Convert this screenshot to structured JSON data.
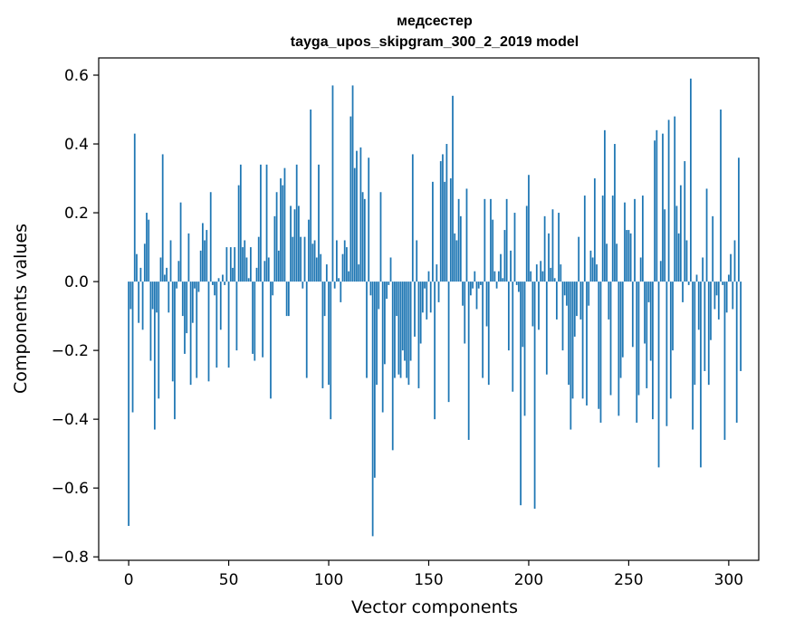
{
  "chart_data": {
    "type": "bar",
    "title": "медсестер",
    "subtitle": "tayga_upos_skipgram_300_2_2019 model",
    "xlabel": "Vector components",
    "ylabel": "Components values",
    "xlim": [
      -15,
      315
    ],
    "ylim": [
      -0.81,
      0.65
    ],
    "xticks": [
      0,
      50,
      100,
      150,
      200,
      250,
      300
    ],
    "yticks": [
      -0.8,
      -0.6,
      -0.4,
      -0.2,
      0.0,
      0.2,
      0.4,
      0.6
    ],
    "xtick_labels": [
      "0",
      "50",
      "100",
      "150",
      "200",
      "250",
      "300"
    ],
    "ytick_labels": [
      "−0.8",
      "−0.6",
      "−0.4",
      "−0.2",
      "0.0",
      "0.2",
      "0.4",
      "0.6"
    ],
    "values": [
      -0.71,
      -0.08,
      -0.38,
      0.43,
      0.08,
      -0.12,
      0.04,
      -0.14,
      0.11,
      0.2,
      0.18,
      -0.23,
      -0.08,
      -0.43,
      -0.09,
      -0.34,
      0.07,
      0.37,
      0.02,
      0.04,
      -0.09,
      0.12,
      -0.29,
      -0.4,
      -0.02,
      0.06,
      0.23,
      -0.1,
      -0.21,
      -0.15,
      0.14,
      -0.3,
      -0.12,
      -0.02,
      -0.28,
      -0.03,
      0.09,
      0.17,
      0.12,
      0.15,
      -0.29,
      0.26,
      -0.01,
      -0.04,
      -0.25,
      0.01,
      -0.14,
      0.02,
      -0.01,
      0.1,
      -0.25,
      0.1,
      0.04,
      0.1,
      -0.2,
      0.28,
      0.34,
      0.1,
      0.12,
      0.07,
      0.01,
      0.1,
      -0.21,
      -0.23,
      0.04,
      0.13,
      0.34,
      -0.22,
      0.06,
      0.34,
      0.07,
      -0.34,
      -0.04,
      0.19,
      0.26,
      0.09,
      0.3,
      0.28,
      0.33,
      -0.1,
      -0.1,
      0.22,
      0.13,
      0.21,
      0.34,
      0.22,
      0.13,
      -0.02,
      0.13,
      -0.28,
      0.18,
      0.5,
      0.11,
      0.12,
      0.07,
      0.34,
      0.08,
      -0.31,
      -0.1,
      0.05,
      -0.3,
      -0.4,
      0.57,
      -0.02,
      0.12,
      0.01,
      -0.06,
      0.08,
      0.12,
      0.1,
      0.03,
      0.48,
      0.57,
      0.33,
      0.38,
      0.05,
      0.39,
      0.26,
      0.24,
      -0.28,
      0.36,
      -0.04,
      -0.74,
      -0.57,
      -0.3,
      -0.08,
      0.26,
      -0.38,
      -0.24,
      -0.05,
      -0.01,
      0.07,
      -0.49,
      -0.28,
      -0.1,
      -0.27,
      -0.28,
      -0.2,
      -0.23,
      -0.28,
      -0.3,
      -0.23,
      0.37,
      -0.16,
      0.12,
      -0.31,
      -0.18,
      -0.09,
      -0.02,
      -0.11,
      0.03,
      -0.09,
      0.29,
      -0.4,
      0.05,
      -0.06,
      0.35,
      0.37,
      0.29,
      0.4,
      -0.35,
      0.3,
      0.54,
      0.14,
      0.12,
      0.24,
      0.19,
      -0.07,
      -0.18,
      0.27,
      -0.46,
      -0.04,
      -0.02,
      0.03,
      -0.08,
      -0.02,
      -0.01,
      -0.28,
      0.24,
      -0.13,
      -0.3,
      0.24,
      0.18,
      0.03,
      -0.02,
      0.03,
      0.08,
      0.01,
      0.15,
      0.24,
      -0.2,
      0.09,
      -0.32,
      0.2,
      -0.01,
      -0.03,
      -0.65,
      -0.19,
      -0.39,
      0.22,
      0.31,
      0.03,
      -0.13,
      -0.66,
      0.05,
      -0.14,
      0.06,
      0.03,
      0.19,
      -0.27,
      0.14,
      0.04,
      0.21,
      0.01,
      -0.11,
      0.2,
      0.05,
      -0.2,
      -0.04,
      -0.07,
      -0.3,
      -0.43,
      -0.34,
      -0.16,
      -0.1,
      0.13,
      -0.11,
      -0.34,
      0.25,
      -0.36,
      -0.07,
      0.09,
      0.07,
      0.3,
      0.05,
      -0.37,
      -0.41,
      0.25,
      0.44,
      0.11,
      -0.11,
      -0.33,
      0.25,
      0.4,
      0.11,
      -0.39,
      -0.28,
      -0.22,
      0.23,
      0.15,
      0.15,
      0.14,
      -0.19,
      0.24,
      -0.41,
      -0.33,
      0.07,
      0.25,
      -0.18,
      -0.31,
      -0.06,
      -0.23,
      -0.4,
      0.41,
      0.44,
      -0.54,
      0.06,
      0.43,
      0.21,
      -0.42,
      0.47,
      -0.34,
      -0.2,
      0.48,
      0.22,
      0.14,
      0.28,
      -0.06,
      0.35,
      0.12,
      -0.01,
      0.59,
      -0.43,
      -0.3,
      0.02,
      -0.14,
      -0.54,
      0.07,
      -0.26,
      0.27,
      -0.3,
      -0.17,
      0.19,
      -0.08,
      -0.04,
      -0.11,
      0.5,
      -0.01,
      -0.46,
      -0.09,
      0.02,
      0.08,
      -0.08,
      0.12,
      -0.41,
      0.36,
      -0.26
    ]
  }
}
